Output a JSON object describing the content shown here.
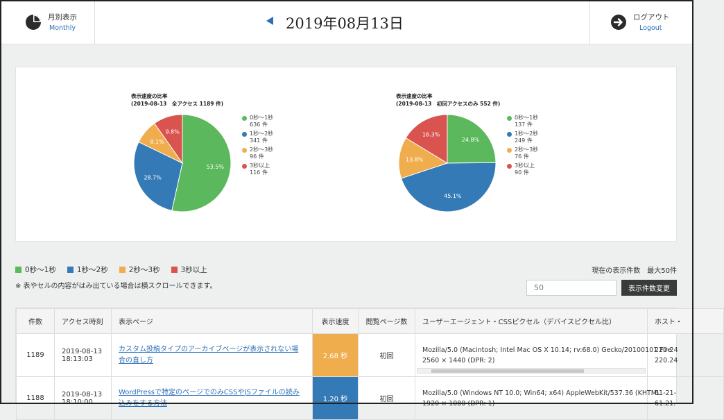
{
  "header": {
    "left_title": "月別表示",
    "left_link": "Monthly",
    "date": "2019年08月13日",
    "right_title": "ログアウト",
    "right_link": "Logout"
  },
  "charts": [
    {
      "title_line1": "表示速度の比率",
      "title_line2": "(2019-08-13　全アクセス 1189 件)",
      "legend": [
        {
          "label": "0秒～1秒",
          "count": "636 件",
          "color": "#5cb85c"
        },
        {
          "label": "1秒～2秒",
          "count": "341 件",
          "color": "#337ab7"
        },
        {
          "label": "2秒～3秒",
          "count": "96 件",
          "color": "#f0ad4e"
        },
        {
          "label": "3秒以上",
          "count": "116 件",
          "color": "#d9534f"
        }
      ]
    },
    {
      "title_line1": "表示速度の比率",
      "title_line2": "(2019-08-13　初回アクセスのみ 552 件)",
      "legend": [
        {
          "label": "0秒～1秒",
          "count": "137 件",
          "color": "#5cb85c"
        },
        {
          "label": "1秒～2秒",
          "count": "249 件",
          "color": "#337ab7"
        },
        {
          "label": "2秒～3秒",
          "count": "76 件",
          "color": "#f0ad4e"
        },
        {
          "label": "3秒以上",
          "count": "90 件",
          "color": "#d9534f"
        }
      ]
    }
  ],
  "chart_data": [
    {
      "type": "pie",
      "title": "表示速度の比率 (2019-08-13　全アクセス 1189 件)",
      "categories": [
        "0秒～1秒",
        "1秒～2秒",
        "2秒～3秒",
        "3秒以上"
      ],
      "values": [
        636,
        341,
        96,
        116
      ],
      "percent_labels": [
        "53.5%",
        "28.7%",
        "8.1%",
        "9.8%"
      ],
      "colors": [
        "#5cb85c",
        "#337ab7",
        "#f0ad4e",
        "#d9534f"
      ],
      "legend_position": "right"
    },
    {
      "type": "pie",
      "title": "表示速度の比率 (2019-08-13　初回アクセスのみ 552 件)",
      "categories": [
        "0秒～1秒",
        "1秒～2秒",
        "2秒～3秒",
        "3秒以上"
      ],
      "values": [
        137,
        249,
        76,
        90
      ],
      "percent_labels": [
        "24.8%",
        "45.1%",
        "13.8%",
        "16.3%"
      ],
      "colors": [
        "#5cb85c",
        "#337ab7",
        "#f0ad4e",
        "#d9534f"
      ],
      "legend_position": "right"
    }
  ],
  "speed_legend": [
    {
      "label": "0秒～1秒",
      "color": "#5cb85c"
    },
    {
      "label": "1秒～2秒",
      "color": "#337ab7"
    },
    {
      "label": "2秒～3秒",
      "color": "#f0ad4e"
    },
    {
      "label": "3秒以上",
      "color": "#d9534f"
    }
  ],
  "note": "※ 表やセルの内容がはみ出ている場合は横スクロールできます。",
  "display_count": {
    "label": "現在の表示件数　最大50件",
    "placeholder": "50",
    "button": "表示件数変更"
  },
  "table": {
    "headers": [
      "件数",
      "アクセス時刻",
      "表示ページ",
      "表示速度",
      "閲覧ページ数",
      "ユーザーエージェント・CSSピクセル（デバイスピクセル比）",
      "ホスト・"
    ],
    "rows": [
      {
        "num": "1189",
        "date": "2019-08-13",
        "time": "18:13:03",
        "page": "カスタム投稿タイプのアーカイブページが表示されない場合の直し方",
        "speed": "2.68 秒",
        "speed_color": "#f0ad4e",
        "views": "初回",
        "ua": "Mozilla/5.0 (Macintosh; Intel Mac OS X 10.14; rv:68.0) Gecko/20100101 Fire",
        "pixels": "2560 × 1440  (DPR: 2)",
        "host1": "220-24",
        "host2": "220.24"
      },
      {
        "num": "1188",
        "date": "2019-08-13",
        "time": "18:10:00",
        "page": "WordPressで特定のページでのみCSSやJSファイルの読み込みをする方法",
        "speed": "1.20 秒",
        "speed_color": "#337ab7",
        "views": "初回",
        "ua": "Mozilla/5.0 (Windows NT 10.0; Win64; x64) AppleWebKit/537.36 (KHTML",
        "pixels": "1920 × 1080  (DPR: 1)",
        "host1": "61-21-",
        "host2": "61.21."
      }
    ]
  }
}
